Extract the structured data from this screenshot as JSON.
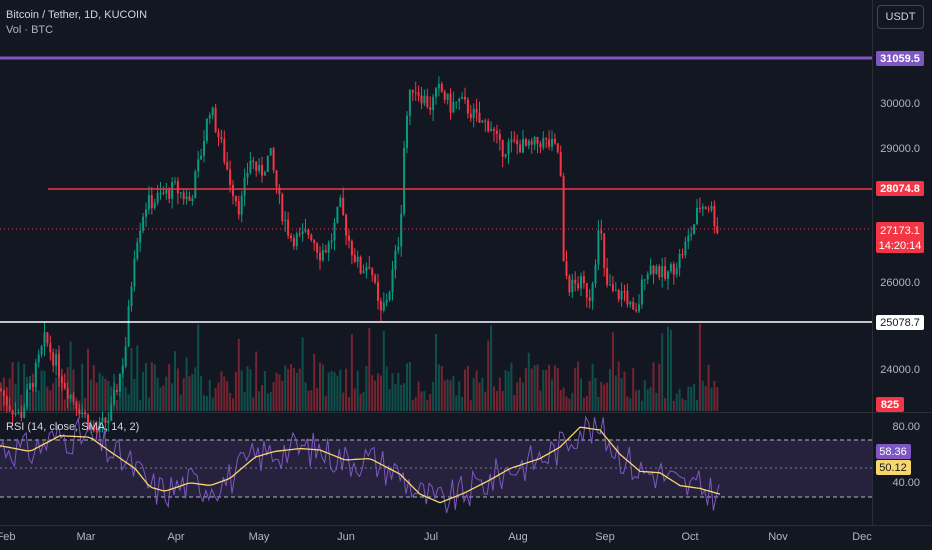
{
  "header": {
    "symbol_title": "Bitcoin / Tether, 1D, KUCOIN",
    "volume_label": "Vol · BTC",
    "currency_button": "USDT"
  },
  "rsi": {
    "legend": "RSI (14, close, SMA, 14, 2)",
    "value_rsi": "58.36",
    "value_sma": "50.12",
    "upper_level": "80.00",
    "lower_level": "40.00"
  },
  "price_axis": {
    "ticks": [
      "30000.0",
      "29000.0",
      "26000.0",
      "24000.0"
    ]
  },
  "time_axis": {
    "labels": [
      "Feb",
      "Mar",
      "Apr",
      "May",
      "Jun",
      "Jul",
      "Aug",
      "Sep",
      "Oct",
      "Nov",
      "Dec"
    ]
  },
  "badges": {
    "resistance_top": "31059.5",
    "resistance_mid": "28074.8",
    "current_price": "27173.1",
    "countdown": "14:20:14",
    "support": "25078.7",
    "volume": "825"
  },
  "colors": {
    "up": "#089981",
    "down": "#f23645",
    "purple_line": "#7e57c2",
    "red_line": "#f23645",
    "support_line": "#ffffff",
    "rsi_line": "#7e57c2",
    "rsi_sma": "#f5d76e"
  },
  "chart_data": {
    "type": "candlestick",
    "title": "Bitcoin / Tether, 1D, KUCOIN",
    "y_range": [
      23200,
      32200
    ],
    "horizontal_levels": [
      31059.5,
      28074.8,
      25078.7
    ],
    "last_price": 27173.1,
    "x_months": [
      "Feb",
      "Mar",
      "Apr",
      "May",
      "Jun",
      "Jul",
      "Aug",
      "Sep",
      "Oct",
      "Nov",
      "Dec"
    ],
    "close_path": [
      [
        0,
        23650
      ],
      [
        8,
        23300
      ],
      [
        20,
        23000
      ],
      [
        35,
        24000
      ],
      [
        45,
        24800
      ],
      [
        55,
        24300
      ],
      [
        68,
        23600
      ],
      [
        80,
        23200
      ],
      [
        95,
        22600
      ],
      [
        110,
        23000
      ],
      [
        125,
        24500
      ],
      [
        135,
        27000
      ],
      [
        145,
        27900
      ],
      [
        160,
        28100
      ],
      [
        175,
        28300
      ],
      [
        190,
        28000
      ],
      [
        200,
        29000
      ],
      [
        210,
        30200
      ],
      [
        220,
        29400
      ],
      [
        230,
        28500
      ],
      [
        240,
        27800
      ],
      [
        250,
        29000
      ],
      [
        260,
        28600
      ],
      [
        270,
        29100
      ],
      [
        280,
        27900
      ],
      [
        290,
        27200
      ],
      [
        300,
        27100
      ],
      [
        310,
        27300
      ],
      [
        320,
        26800
      ],
      [
        330,
        27000
      ],
      [
        340,
        27900
      ],
      [
        350,
        27000
      ],
      [
        360,
        26400
      ],
      [
        370,
        26600
      ],
      [
        380,
        25300
      ],
      [
        390,
        26000
      ],
      [
        400,
        27300
      ],
      [
        405,
        29700
      ],
      [
        412,
        30700
      ],
      [
        420,
        30500
      ],
      [
        430,
        30200
      ],
      [
        440,
        30600
      ],
      [
        450,
        30200
      ],
      [
        460,
        30300
      ],
      [
        470,
        30100
      ],
      [
        480,
        29800
      ],
      [
        490,
        29800
      ],
      [
        500,
        29200
      ],
      [
        510,
        29300
      ],
      [
        520,
        29300
      ],
      [
        530,
        29200
      ],
      [
        540,
        29400
      ],
      [
        550,
        29300
      ],
      [
        560,
        29100
      ],
      [
        563,
        26500
      ],
      [
        570,
        26000
      ],
      [
        580,
        26100
      ],
      [
        590,
        25800
      ],
      [
        600,
        27500
      ],
      [
        605,
        26100
      ],
      [
        615,
        25800
      ],
      [
        625,
        25900
      ],
      [
        635,
        25200
      ],
      [
        645,
        26400
      ],
      [
        655,
        26500
      ],
      [
        665,
        26200
      ],
      [
        680,
        26700
      ],
      [
        690,
        27200
      ],
      [
        700,
        27900
      ],
      [
        710,
        27900
      ],
      [
        720,
        27170
      ]
    ],
    "rsi_sma_path": [
      [
        0,
        76
      ],
      [
        30,
        72
      ],
      [
        60,
        83
      ],
      [
        90,
        82
      ],
      [
        110,
        72
      ],
      [
        135,
        60
      ],
      [
        150,
        47
      ],
      [
        165,
        44
      ],
      [
        190,
        50
      ],
      [
        210,
        48
      ],
      [
        230,
        53
      ],
      [
        255,
        68
      ],
      [
        275,
        72
      ],
      [
        300,
        74
      ],
      [
        320,
        73
      ],
      [
        345,
        66
      ],
      [
        370,
        67
      ],
      [
        400,
        56
      ],
      [
        420,
        42
      ],
      [
        440,
        36
      ],
      [
        465,
        43
      ],
      [
        490,
        52
      ],
      [
        510,
        60
      ],
      [
        540,
        67
      ],
      [
        560,
        75
      ],
      [
        580,
        89
      ],
      [
        600,
        87
      ],
      [
        620,
        70
      ],
      [
        640,
        58
      ],
      [
        660,
        57
      ],
      [
        680,
        48
      ],
      [
        700,
        46
      ],
      [
        720,
        42
      ]
    ]
  }
}
